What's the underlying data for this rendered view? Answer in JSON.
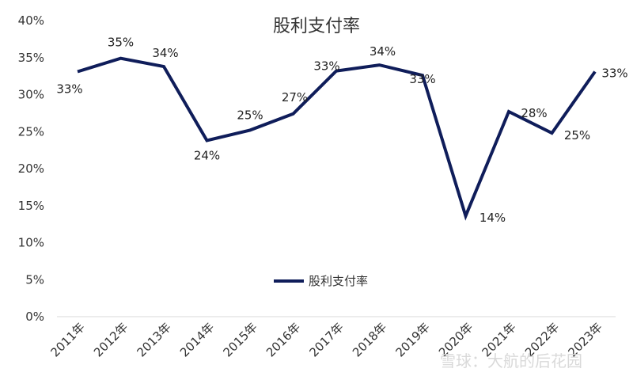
{
  "chart_data": {
    "type": "line",
    "title": "股利支付率",
    "categories": [
      "2011年",
      "2012年",
      "2013年",
      "2014年",
      "2015年",
      "2016年",
      "2017年",
      "2018年",
      "2019年",
      "2020年",
      "2021年",
      "2022年",
      "2023年"
    ],
    "series": [
      {
        "name": "股利支付率",
        "values": [
          33.1,
          34.9,
          33.8,
          23.8,
          25.2,
          27.4,
          33.2,
          34.0,
          32.6,
          13.6,
          27.7,
          24.8,
          33.1
        ],
        "data_labels": [
          "33%",
          "35%",
          "34%",
          "24%",
          "25%",
          "27%",
          "33%",
          "34%",
          "33%",
          "14%",
          "28%",
          "25%",
          "33%"
        ]
      }
    ],
    "ylim": [
      0,
      40
    ],
    "yticks": [
      "0%",
      "5%",
      "10%",
      "15%",
      "20%",
      "25%",
      "30%",
      "35%",
      "40%"
    ],
    "xlabel": "",
    "ylabel": "",
    "grid": false,
    "legend": "bottom-center",
    "colors": {
      "line": "#0f1d5a"
    }
  },
  "watermark": "雪球：大航的后花园"
}
